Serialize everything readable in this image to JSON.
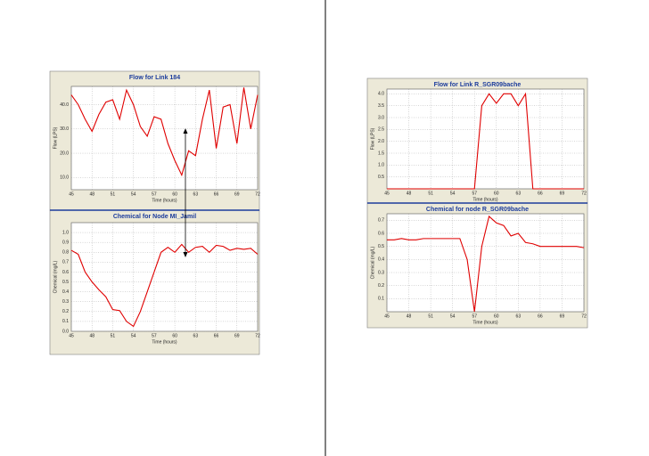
{
  "chart_data": [
    {
      "type": "line",
      "title": "Flow for Link 184",
      "x_label": "Time (hours)",
      "y_label": "Flow (LPS)",
      "x": [
        45,
        46,
        47,
        48,
        49,
        50,
        51,
        52,
        53,
        54,
        55,
        56,
        57,
        58,
        59,
        60,
        61,
        62,
        63,
        64,
        65,
        66,
        67,
        68,
        69,
        70,
        71,
        72
      ],
      "xlim": [
        45,
        72
      ],
      "xticks": [
        45,
        48,
        51,
        54,
        57,
        60,
        63,
        66,
        69,
        72
      ],
      "ylim": [
        5,
        47.5
      ],
      "yticks": [
        {
          "value": 10,
          "label": "10.0"
        },
        {
          "value": 20,
          "label": "20.0"
        },
        {
          "value": 30,
          "label": "30.0"
        },
        {
          "value": 40,
          "label": "40.0"
        }
      ],
      "grid": true,
      "color": "#e00000",
      "values": [
        44,
        40,
        34,
        29,
        36,
        41,
        42,
        34,
        46,
        40,
        31,
        27,
        35,
        34,
        24,
        17,
        11,
        21,
        19,
        34,
        46,
        22,
        39,
        40,
        24,
        47,
        30,
        44
      ]
    },
    {
      "type": "line",
      "title": "Chemical for Node MI_Jamil",
      "x_label": "Time (hours)",
      "y_label": "Chemical (mg/L)",
      "x": [
        45,
        46,
        47,
        48,
        49,
        50,
        51,
        52,
        53,
        54,
        55,
        56,
        57,
        58,
        59,
        60,
        61,
        62,
        63,
        64,
        65,
        66,
        67,
        68,
        69,
        70,
        71,
        72
      ],
      "xlim": [
        45,
        72
      ],
      "xticks": [
        45,
        48,
        51,
        54,
        57,
        60,
        63,
        66,
        69,
        72
      ],
      "ylim": [
        0,
        1.1
      ],
      "yticks": [
        {
          "value": 0,
          "label": "0.0"
        },
        0.1,
        0.2,
        0.3,
        0.4,
        0.5,
        0.6,
        0.7,
        0.8,
        0.9,
        {
          "value": 1,
          "label": "1.0"
        }
      ],
      "grid": true,
      "color": "#e00000",
      "values": [
        0.82,
        0.78,
        0.6,
        0.5,
        0.42,
        0.35,
        0.22,
        0.21,
        0.1,
        0.05,
        0.2,
        0.4,
        0.6,
        0.8,
        0.85,
        0.8,
        0.88,
        0.8,
        0.85,
        0.86,
        0.8,
        0.87,
        0.86,
        0.82,
        0.84,
        0.83,
        0.84,
        0.78
      ]
    },
    {
      "type": "line",
      "title": "Flow for Link R_SGR09bache",
      "x_label": "Time (hours)",
      "y_label": "Flow (LPS)",
      "x": [
        45,
        46,
        47,
        48,
        49,
        50,
        51,
        52,
        53,
        54,
        55,
        56,
        57,
        58,
        59,
        60,
        61,
        62,
        63,
        64,
        65,
        66,
        67,
        68,
        69,
        70,
        71,
        72
      ],
      "xlim": [
        45,
        72
      ],
      "xticks": [
        45,
        48,
        51,
        54,
        57,
        60,
        63,
        66,
        69,
        72
      ],
      "ylim": [
        0,
        4.2
      ],
      "yticks": [
        0.5,
        {
          "value": 1,
          "label": "1.0"
        },
        1.5,
        {
          "value": 2,
          "label": "2.0"
        },
        2.5,
        {
          "value": 3,
          "label": "3.0"
        },
        3.5,
        {
          "value": 4,
          "label": "4.0"
        }
      ],
      "grid": true,
      "color": "#e00000",
      "values": [
        0,
        0,
        0,
        0,
        0,
        0,
        0,
        0,
        0,
        0,
        0,
        0,
        0,
        3.5,
        4.0,
        3.6,
        4.0,
        4.0,
        3.5,
        4.0,
        0,
        0,
        0,
        0,
        0,
        0,
        0,
        0
      ]
    },
    {
      "type": "line",
      "title": "Chemical for node R_SGR09bache",
      "x_label": "Time (hours)",
      "y_label": "Chemical (mg/L)",
      "x": [
        45,
        46,
        47,
        48,
        49,
        50,
        51,
        52,
        53,
        54,
        55,
        56,
        57,
        58,
        59,
        60,
        61,
        62,
        63,
        64,
        65,
        66,
        67,
        68,
        69,
        70,
        71,
        72
      ],
      "xlim": [
        45,
        72
      ],
      "xticks": [
        45,
        48,
        51,
        54,
        57,
        60,
        63,
        66,
        69,
        72
      ],
      "ylim": [
        0,
        0.75
      ],
      "yticks": [
        0.1,
        0.2,
        0.3,
        0.4,
        0.5,
        0.6,
        0.7
      ],
      "grid": true,
      "color": "#e00000",
      "values": [
        0.55,
        0.55,
        0.56,
        0.55,
        0.55,
        0.56,
        0.56,
        0.56,
        0.56,
        0.56,
        0.56,
        0.4,
        0.0,
        0.5,
        0.73,
        0.68,
        0.66,
        0.58,
        0.6,
        0.53,
        0.52,
        0.5,
        0.5,
        0.5,
        0.5,
        0.5,
        0.5,
        0.49
      ]
    }
  ]
}
